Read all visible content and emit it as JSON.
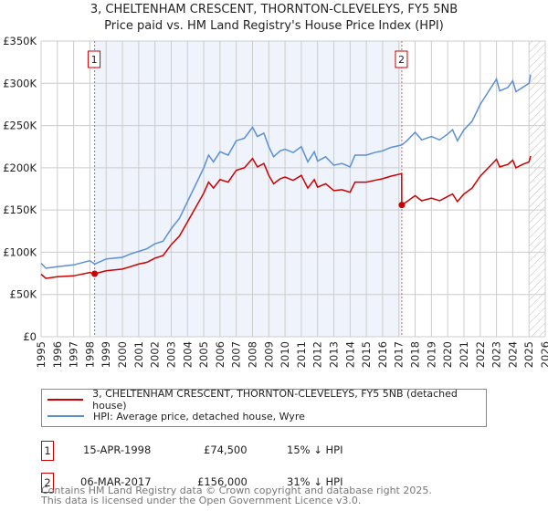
{
  "title": "3, CHELTENHAM CRESCENT, THORNTON-CLEVELEYS, FY5 5NB",
  "subtitle": "Price paid vs. HM Land Registry's House Price Index (HPI)",
  "colors": {
    "property": "#cc0000",
    "hpi": "#5b8fd4",
    "shade": "#eef3fc",
    "grid": "#cccccc"
  },
  "chart_data": {
    "type": "line",
    "title": "3, CHELTENHAM CRESCENT, THORNTON-CLEVELEYS, FY5 5NB",
    "xlim": [
      1995,
      2026
    ],
    "ylim": [
      0,
      350000
    ],
    "grid": true,
    "y_ticks": [
      0,
      50000,
      100000,
      150000,
      200000,
      250000,
      300000,
      350000
    ],
    "y_tick_labels": [
      "£0",
      "£50K",
      "£100K",
      "£150K",
      "£200K",
      "£250K",
      "£300K",
      "£350K"
    ],
    "x_ticks": [
      1995,
      1996,
      1997,
      1998,
      1999,
      2000,
      2001,
      2002,
      2003,
      2004,
      2005,
      2006,
      2007,
      2008,
      2009,
      2010,
      2011,
      2012,
      2013,
      2014,
      2015,
      2016,
      2017,
      2018,
      2019,
      2020,
      2021,
      2022,
      2023,
      2024,
      2025,
      2026
    ],
    "x_tick_labels": [
      "1995",
      "1996",
      "1997",
      "1998",
      "1999",
      "2000",
      "2001",
      "2002",
      "2003",
      "2004",
      "2005",
      "2006",
      "2007",
      "2008",
      "2009",
      "2010",
      "2011",
      "2012",
      "2013",
      "2014",
      "2015",
      "2016",
      "2017",
      "2018",
      "2019",
      "2020",
      "2021",
      "2022",
      "2023",
      "2024",
      "2025",
      "2026"
    ],
    "x": [
      1995,
      1995.3,
      1996,
      1997,
      1998,
      1998.29,
      1999,
      2000,
      2000.5,
      2001,
      2001.5,
      2002,
      2002.5,
      2003,
      2003.5,
      2004,
      2004.5,
      2005,
      2005.3,
      2005.6,
      2006,
      2006.5,
      2007,
      2007.5,
      2008,
      2008.3,
      2008.7,
      2009,
      2009.3,
      2009.7,
      2010,
      2010.5,
      2011,
      2011.4,
      2011.8,
      2012,
      2012.5,
      2013,
      2013.5,
      2014,
      2014.3,
      2015,
      2015.5,
      2016,
      2016.5,
      2017.17,
      2017.18,
      2017.5,
      2018,
      2018.4,
      2019,
      2019.5,
      2020,
      2020.3,
      2020.6,
      2021,
      2021.5,
      2022,
      2022.5,
      2023,
      2023.2,
      2023.7,
      2024,
      2024.2,
      2024.6,
      2025,
      2025.1
    ],
    "series": [
      {
        "name": "3, CHELTENHAM CRESCENT, THORNTON-CLEVELEYS, FY5 5NB (detached house)",
        "values": [
          74000,
          69000,
          71000,
          72000,
          76000,
          74500,
          78000,
          80000,
          83000,
          86000,
          88000,
          93000,
          96000,
          109000,
          119000,
          136000,
          153000,
          170000,
          183000,
          176000,
          186000,
          183000,
          197000,
          200000,
          211000,
          201000,
          205000,
          191000,
          181000,
          187000,
          189000,
          185000,
          191000,
          176000,
          186000,
          177000,
          181000,
          173000,
          174000,
          171000,
          183000,
          183000,
          185000,
          187000,
          190000,
          193000,
          156000,
          160000,
          167000,
          161000,
          164000,
          161000,
          166000,
          169000,
          160000,
          169000,
          176000,
          190000,
          200000,
          210000,
          201000,
          204000,
          209000,
          200000,
          204000,
          207000,
          214000
        ]
      },
      {
        "name": "HPI: Average price, detached house, Wyre",
        "values": [
          87000,
          81000,
          83000,
          85000,
          90000,
          86000,
          92000,
          94000,
          98000,
          101000,
          104000,
          110000,
          113000,
          128000,
          140000,
          160000,
          180000,
          200000,
          215000,
          207000,
          219000,
          215000,
          232000,
          235000,
          248000,
          237000,
          241000,
          225000,
          213000,
          220000,
          222000,
          218000,
          225000,
          207000,
          219000,
          208000,
          213000,
          203000,
          205000,
          201000,
          215000,
          215000,
          218000,
          220000,
          224000,
          227000,
          227000,
          232000,
          242000,
          233000,
          237000,
          233000,
          240000,
          245000,
          232000,
          245000,
          255000,
          275000,
          290000,
          305000,
          291000,
          295000,
          303000,
          290000,
          295000,
          300000,
          310000
        ]
      }
    ],
    "shaded_range": [
      1998.29,
      2017.18
    ],
    "forecast_hatch_from": 2025,
    "sales": [
      {
        "label": "1",
        "x": 1998.29,
        "value": 74500
      },
      {
        "label": "2",
        "x": 2017.18,
        "value": 156000
      }
    ]
  },
  "legend": {
    "property": "3, CHELTENHAM CRESCENT, THORNTON-CLEVELEYS, FY5 5NB (detached house)",
    "hpi": "HPI: Average price, detached house, Wyre"
  },
  "transactions": [
    {
      "num": "1",
      "date": "15-APR-1998",
      "price": "£74,500",
      "hpi": "15% ↓ HPI"
    },
    {
      "num": "2",
      "date": "06-MAR-2017",
      "price": "£156,000",
      "hpi": "31% ↓ HPI"
    }
  ],
  "footer": [
    "Contains HM Land Registry data © Crown copyright and database right 2025.",
    "This data is licensed under the Open Government Licence v3.0."
  ]
}
